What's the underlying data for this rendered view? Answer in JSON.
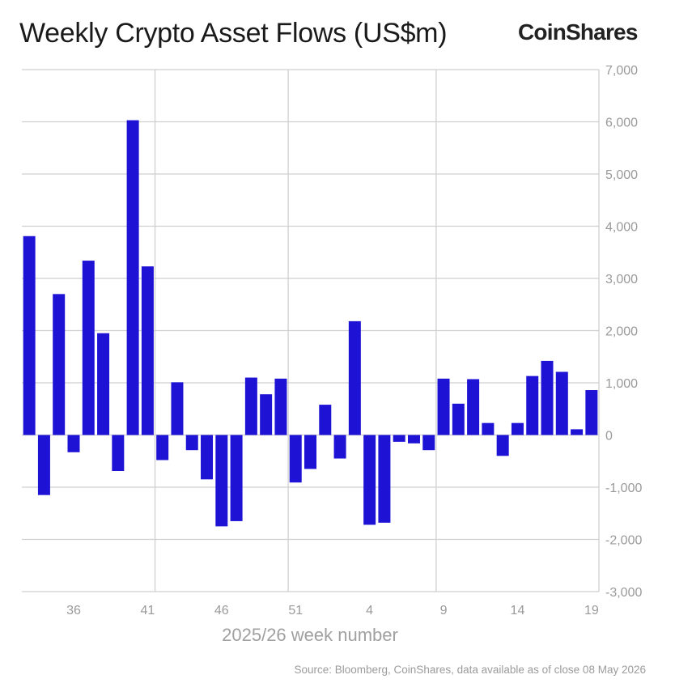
{
  "header": {
    "title": "Weekly Crypto Asset Flows (US$m)",
    "logo": "CoinShares"
  },
  "footer": {
    "source": "Source: Bloomberg, CoinShares, data available as of close 08 May 2026"
  },
  "colors": {
    "bar": "#1e12d4",
    "grid": "#cfcfcf",
    "axis_text": "#9a9a9a"
  },
  "chart_data": {
    "type": "bar",
    "xlabel": "2025/26 week number",
    "ylabel": "",
    "ylim": [
      -3000,
      7000
    ],
    "yticks": [
      7000,
      6000,
      5000,
      4000,
      3000,
      2000,
      1000,
      0,
      -1000,
      -2000,
      -3000
    ],
    "ytick_labels": [
      "7,000",
      "6,000",
      "5,000",
      "4,000",
      "3,000",
      "2,000",
      "1,000",
      "0",
      "-1,000",
      "-2,000",
      "-3,000"
    ],
    "xtick_labels": [
      "36",
      "41",
      "46",
      "51",
      "4",
      "9",
      "14",
      "19"
    ],
    "grid": true,
    "y_axis_side": "right",
    "categories": [
      "33",
      "34",
      "35",
      "36",
      "37",
      "38",
      "39",
      "40",
      "41",
      "42",
      "43",
      "44",
      "45",
      "46",
      "47",
      "48",
      "49",
      "50",
      "51",
      "52",
      "1",
      "2",
      "3",
      "4",
      "5",
      "6",
      "7",
      "8",
      "9",
      "10",
      "11",
      "12",
      "13",
      "14",
      "15",
      "16",
      "17",
      "18",
      "19"
    ],
    "values": [
      3810,
      -1150,
      2700,
      -330,
      3340,
      1950,
      -690,
      6030,
      3230,
      -480,
      1010,
      -290,
      -850,
      -1750,
      -1650,
      1100,
      780,
      1080,
      -910,
      -650,
      580,
      -450,
      2180,
      -1720,
      -1680,
      -130,
      -160,
      -290,
      1080,
      600,
      1070,
      230,
      -400,
      230,
      1130,
      1420,
      1210,
      110,
      860
    ]
  }
}
